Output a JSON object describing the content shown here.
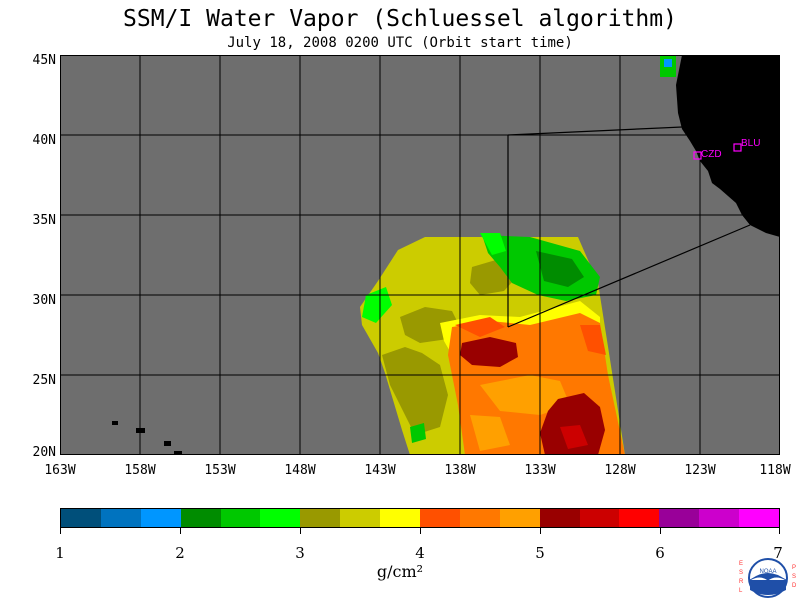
{
  "title": "SSM/I Water Vapor (Schluessel algorithm)",
  "subtitle": "July 18, 2008  0200 UTC  (Orbit start time)",
  "lat_labels": [
    "45N",
    "40N",
    "35N",
    "30N",
    "25N",
    "20N"
  ],
  "lon_labels": [
    "163W",
    "158W",
    "153W",
    "148W",
    "143W",
    "138W",
    "133W",
    "128W",
    "123W",
    "118W"
  ],
  "stations": [
    {
      "name": "CZD",
      "lat": 38.6,
      "lon": -123.2
    },
    {
      "name": "BLU",
      "lat": 39.3,
      "lon": -120.7
    }
  ],
  "colorbar": {
    "colors": [
      "#004f7a",
      "#0073bf",
      "#0096ff",
      "#008c00",
      "#00c800",
      "#00ff00",
      "#999900",
      "#cccc00",
      "#ffff00",
      "#ff5000",
      "#ff7800",
      "#ffa000",
      "#990000",
      "#cc0000",
      "#ff0000",
      "#990099",
      "#cc00cc",
      "#ff00ff"
    ],
    "tick_labels": [
      "1",
      "2",
      "3",
      "4",
      "5",
      "6",
      "7"
    ],
    "unit": "g/cm²"
  },
  "colors": {
    "ocean": "#6e6e6e",
    "land": "#000000",
    "station": "#ff00ff"
  },
  "logo_left": "ESRL",
  "logo_right": "PSD",
  "logo_text": "NOAA"
}
